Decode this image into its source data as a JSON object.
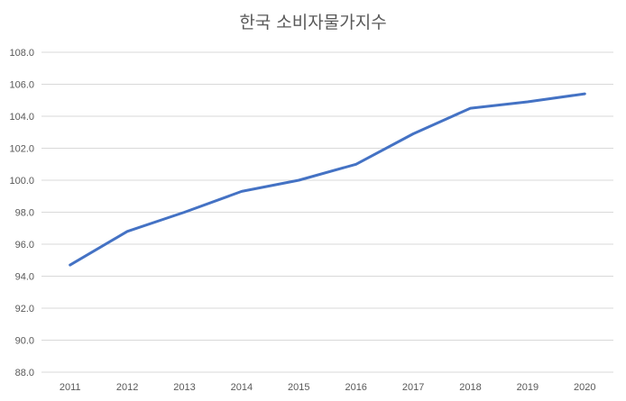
{
  "colors": {
    "series": "#4472C4",
    "grid": "#d9d9d9",
    "text": "#595959"
  },
  "chart_data": {
    "type": "line",
    "title": "한국 소비자물가지수",
    "xlabel": "",
    "ylabel": "",
    "categories": [
      "2011",
      "2012",
      "2013",
      "2014",
      "2015",
      "2016",
      "2017",
      "2018",
      "2019",
      "2020"
    ],
    "series": [
      {
        "values": [
          94.7,
          96.8,
          98.0,
          99.3,
          100.0,
          101.0,
          102.9,
          104.5,
          104.9,
          105.4
        ]
      }
    ],
    "ylim": [
      88.0,
      108.0
    ],
    "yticks": [
      "88.0",
      "90.0",
      "92.0",
      "94.0",
      "96.0",
      "98.0",
      "100.0",
      "102.0",
      "104.0",
      "106.0",
      "108.0"
    ],
    "grid": true,
    "legend": "none"
  }
}
